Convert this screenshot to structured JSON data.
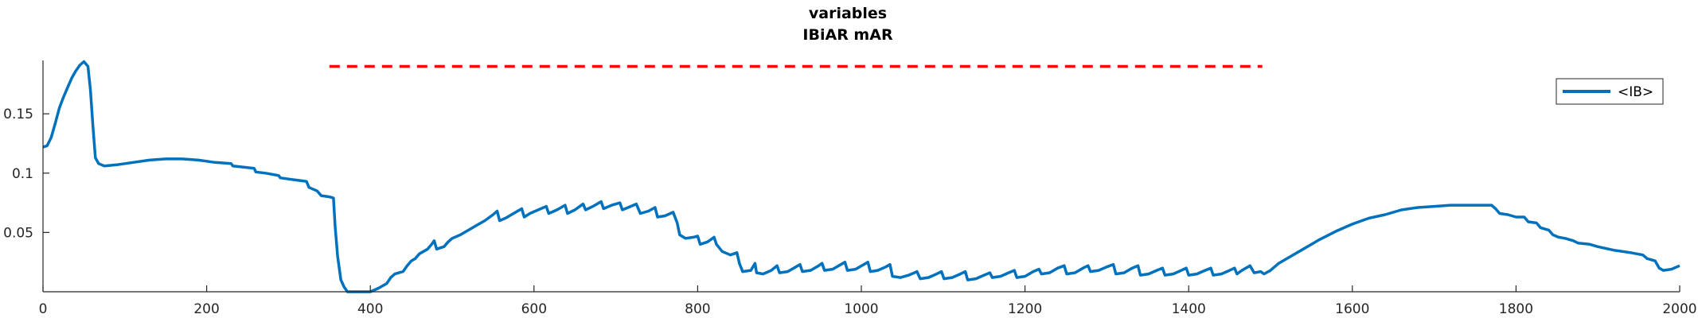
{
  "chart_data": {
    "type": "line",
    "title": [
      "variables",
      "IBiAR mAR"
    ],
    "xlabel": "",
    "ylabel": "",
    "xlim": [
      0,
      2000
    ],
    "ylim": [
      0,
      0.195
    ],
    "xticks": [
      0,
      200,
      400,
      600,
      800,
      1000,
      1200,
      1400,
      1600,
      1800,
      2000
    ],
    "yticks": [
      0.05,
      0.1,
      0.15
    ],
    "ytick_labels": [
      "0.05",
      "0.1",
      "0.15"
    ],
    "grid": false,
    "legend": {
      "position": "top-right",
      "entries": [
        "<IB>"
      ]
    },
    "reference_line": {
      "y": 0.19,
      "x_start": 350,
      "x_end": 1490,
      "color": "#ff0000",
      "style": "dashed"
    },
    "series": [
      {
        "name": "<IB>",
        "color": "#0072BD",
        "points": [
          [
            0,
            0.122
          ],
          [
            5,
            0.123
          ],
          [
            10,
            0.13
          ],
          [
            15,
            0.142
          ],
          [
            20,
            0.155
          ],
          [
            25,
            0.164
          ],
          [
            30,
            0.172
          ],
          [
            35,
            0.18
          ],
          [
            40,
            0.186
          ],
          [
            45,
            0.191
          ],
          [
            50,
            0.194
          ],
          [
            55,
            0.19
          ],
          [
            58,
            0.17
          ],
          [
            61,
            0.14
          ],
          [
            64,
            0.113
          ],
          [
            68,
            0.108
          ],
          [
            75,
            0.106
          ],
          [
            90,
            0.107
          ],
          [
            110,
            0.109
          ],
          [
            130,
            0.111
          ],
          [
            150,
            0.112
          ],
          [
            170,
            0.112
          ],
          [
            190,
            0.111
          ],
          [
            200,
            0.11
          ],
          [
            210,
            0.109
          ],
          [
            230,
            0.108
          ],
          [
            232,
            0.106
          ],
          [
            245,
            0.105
          ],
          [
            258,
            0.104
          ],
          [
            260,
            0.101
          ],
          [
            272,
            0.1
          ],
          [
            288,
            0.098
          ],
          [
            290,
            0.096
          ],
          [
            300,
            0.095
          ],
          [
            322,
            0.093
          ],
          [
            325,
            0.088
          ],
          [
            335,
            0.085
          ],
          [
            340,
            0.081
          ],
          [
            350,
            0.08
          ],
          [
            355,
            0.079
          ],
          [
            357,
            0.055
          ],
          [
            360,
            0.03
          ],
          [
            364,
            0.01
          ],
          [
            368,
            0.004
          ],
          [
            372,
            0.0
          ],
          [
            380,
            0.0
          ],
          [
            395,
            0.0
          ],
          [
            400,
            0.0
          ],
          [
            410,
            0.003
          ],
          [
            420,
            0.007
          ],
          [
            425,
            0.012
          ],
          [
            430,
            0.015
          ],
          [
            440,
            0.017
          ],
          [
            445,
            0.022
          ],
          [
            450,
            0.026
          ],
          [
            455,
            0.028
          ],
          [
            460,
            0.032
          ],
          [
            470,
            0.036
          ],
          [
            475,
            0.04
          ],
          [
            478,
            0.043
          ],
          [
            481,
            0.036
          ],
          [
            490,
            0.038
          ],
          [
            495,
            0.042
          ],
          [
            500,
            0.045
          ],
          [
            510,
            0.048
          ],
          [
            520,
            0.052
          ],
          [
            530,
            0.056
          ],
          [
            540,
            0.06
          ],
          [
            550,
            0.065
          ],
          [
            555,
            0.068
          ],
          [
            558,
            0.06
          ],
          [
            565,
            0.062
          ],
          [
            575,
            0.066
          ],
          [
            585,
            0.07
          ],
          [
            588,
            0.063
          ],
          [
            595,
            0.066
          ],
          [
            605,
            0.069
          ],
          [
            615,
            0.072
          ],
          [
            618,
            0.066
          ],
          [
            628,
            0.069
          ],
          [
            638,
            0.073
          ],
          [
            641,
            0.066
          ],
          [
            650,
            0.069
          ],
          [
            660,
            0.074
          ],
          [
            663,
            0.069
          ],
          [
            672,
            0.072
          ],
          [
            682,
            0.076
          ],
          [
            685,
            0.07
          ],
          [
            695,
            0.073
          ],
          [
            705,
            0.075
          ],
          [
            708,
            0.069
          ],
          [
            715,
            0.071
          ],
          [
            725,
            0.074
          ],
          [
            730,
            0.066
          ],
          [
            740,
            0.068
          ],
          [
            748,
            0.071
          ],
          [
            751,
            0.063
          ],
          [
            760,
            0.064
          ],
          [
            770,
            0.067
          ],
          [
            775,
            0.058
          ],
          [
            778,
            0.048
          ],
          [
            785,
            0.045
          ],
          [
            795,
            0.046
          ],
          [
            800,
            0.047
          ],
          [
            803,
            0.04
          ],
          [
            812,
            0.042
          ],
          [
            820,
            0.046
          ],
          [
            823,
            0.04
          ],
          [
            830,
            0.034
          ],
          [
            840,
            0.031
          ],
          [
            848,
            0.033
          ],
          [
            851,
            0.024
          ],
          [
            855,
            0.017
          ],
          [
            865,
            0.018
          ],
          [
            870,
            0.024
          ],
          [
            872,
            0.016
          ],
          [
            880,
            0.015
          ],
          [
            890,
            0.018
          ],
          [
            897,
            0.022
          ],
          [
            900,
            0.016
          ],
          [
            910,
            0.017
          ],
          [
            920,
            0.021
          ],
          [
            925,
            0.023
          ],
          [
            928,
            0.017
          ],
          [
            938,
            0.018
          ],
          [
            948,
            0.022
          ],
          [
            952,
            0.024
          ],
          [
            955,
            0.018
          ],
          [
            965,
            0.019
          ],
          [
            975,
            0.023
          ],
          [
            980,
            0.025
          ],
          [
            983,
            0.018
          ],
          [
            993,
            0.019
          ],
          [
            1003,
            0.023
          ],
          [
            1008,
            0.025
          ],
          [
            1011,
            0.017
          ],
          [
            1020,
            0.018
          ],
          [
            1030,
            0.021
          ],
          [
            1035,
            0.023
          ],
          [
            1038,
            0.013
          ],
          [
            1048,
            0.012
          ],
          [
            1058,
            0.014
          ],
          [
            1068,
            0.017
          ],
          [
            1072,
            0.011
          ],
          [
            1082,
            0.012
          ],
          [
            1092,
            0.015
          ],
          [
            1098,
            0.017
          ],
          [
            1101,
            0.011
          ],
          [
            1111,
            0.012
          ],
          [
            1121,
            0.015
          ],
          [
            1127,
            0.017
          ],
          [
            1130,
            0.01
          ],
          [
            1140,
            0.011
          ],
          [
            1150,
            0.014
          ],
          [
            1157,
            0.016
          ],
          [
            1160,
            0.012
          ],
          [
            1170,
            0.013
          ],
          [
            1180,
            0.016
          ],
          [
            1187,
            0.018
          ],
          [
            1190,
            0.012
          ],
          [
            1200,
            0.013
          ],
          [
            1210,
            0.017
          ],
          [
            1217,
            0.019
          ],
          [
            1220,
            0.015
          ],
          [
            1230,
            0.016
          ],
          [
            1240,
            0.02
          ],
          [
            1248,
            0.022
          ],
          [
            1251,
            0.015
          ],
          [
            1261,
            0.016
          ],
          [
            1271,
            0.02
          ],
          [
            1277,
            0.022
          ],
          [
            1280,
            0.017
          ],
          [
            1290,
            0.018
          ],
          [
            1300,
            0.021
          ],
          [
            1308,
            0.023
          ],
          [
            1311,
            0.015
          ],
          [
            1321,
            0.016
          ],
          [
            1331,
            0.02
          ],
          [
            1338,
            0.022
          ],
          [
            1341,
            0.014
          ],
          [
            1351,
            0.015
          ],
          [
            1361,
            0.018
          ],
          [
            1368,
            0.02
          ],
          [
            1371,
            0.014
          ],
          [
            1381,
            0.015
          ],
          [
            1391,
            0.018
          ],
          [
            1397,
            0.02
          ],
          [
            1400,
            0.014
          ],
          [
            1410,
            0.015
          ],
          [
            1420,
            0.018
          ],
          [
            1427,
            0.02
          ],
          [
            1430,
            0.014
          ],
          [
            1440,
            0.015
          ],
          [
            1450,
            0.018
          ],
          [
            1456,
            0.02
          ],
          [
            1459,
            0.015
          ],
          [
            1465,
            0.018
          ],
          [
            1475,
            0.022
          ],
          [
            1480,
            0.016
          ],
          [
            1488,
            0.017
          ],
          [
            1492,
            0.015
          ],
          [
            1500,
            0.018
          ],
          [
            1510,
            0.024
          ],
          [
            1520,
            0.028
          ],
          [
            1540,
            0.036
          ],
          [
            1560,
            0.044
          ],
          [
            1580,
            0.051
          ],
          [
            1600,
            0.057
          ],
          [
            1620,
            0.062
          ],
          [
            1640,
            0.065
          ],
          [
            1660,
            0.069
          ],
          [
            1680,
            0.071
          ],
          [
            1700,
            0.072
          ],
          [
            1720,
            0.073
          ],
          [
            1740,
            0.073
          ],
          [
            1760,
            0.073
          ],
          [
            1770,
            0.073
          ],
          [
            1775,
            0.07
          ],
          [
            1780,
            0.066
          ],
          [
            1790,
            0.065
          ],
          [
            1800,
            0.063
          ],
          [
            1810,
            0.063
          ],
          [
            1815,
            0.059
          ],
          [
            1825,
            0.058
          ],
          [
            1830,
            0.054
          ],
          [
            1840,
            0.052
          ],
          [
            1845,
            0.048
          ],
          [
            1852,
            0.046
          ],
          [
            1860,
            0.045
          ],
          [
            1870,
            0.043
          ],
          [
            1876,
            0.041
          ],
          [
            1890,
            0.04
          ],
          [
            1900,
            0.038
          ],
          [
            1920,
            0.035
          ],
          [
            1940,
            0.033
          ],
          [
            1955,
            0.031
          ],
          [
            1960,
            0.028
          ],
          [
            1970,
            0.026
          ],
          [
            1975,
            0.02
          ],
          [
            1980,
            0.018
          ],
          [
            1990,
            0.019
          ],
          [
            2000,
            0.022
          ]
        ]
      }
    ]
  }
}
